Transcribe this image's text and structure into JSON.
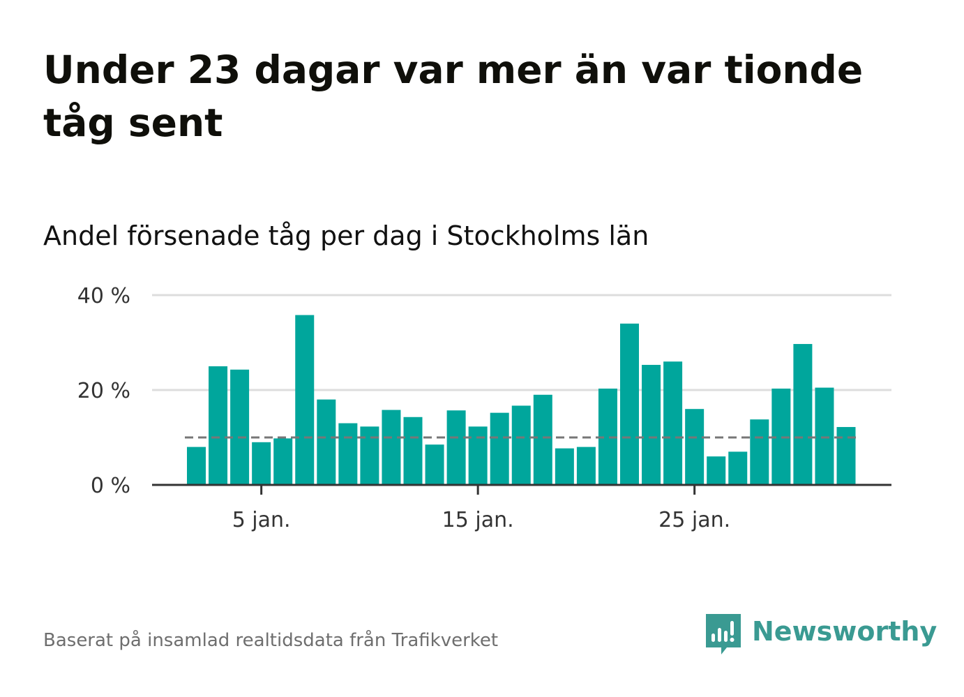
{
  "title": "Under 23 dagar var mer än var tionde tåg sent",
  "subtitle": "Andel försenade tåg per dag i Stockholms län",
  "footer": {
    "source": "Baserat på insamlad realtidsdata från Trafikverket",
    "brand": "Newsworthy",
    "brand_color": "#3a9a92"
  },
  "colors": {
    "bar": "#00a69c",
    "grid": "#dddddd",
    "baseline": "#333333",
    "reference_line": "#777777"
  },
  "chart_data": {
    "type": "bar",
    "title": "Andel försenade tåg per dag i Stockholms län",
    "xlabel": "",
    "ylabel": "",
    "x_unit": "day of January",
    "x": [
      2,
      3,
      4,
      5,
      6,
      7,
      8,
      9,
      10,
      11,
      12,
      13,
      14,
      15,
      16,
      17,
      18,
      19,
      20,
      21,
      22,
      23,
      24,
      25,
      26,
      27,
      28,
      29,
      30,
      31,
      32
    ],
    "values": [
      8,
      25,
      24.3,
      9,
      9.8,
      35.8,
      18,
      13,
      12.3,
      15.8,
      14.3,
      8.5,
      15.7,
      12.3,
      15.2,
      16.7,
      19,
      7.7,
      8,
      20.3,
      34,
      25.3,
      26,
      16,
      6,
      7,
      13.8,
      20.3,
      29.7,
      20.5,
      12.2
    ],
    "ylim": [
      0,
      40
    ],
    "yticks": [
      0,
      20,
      40
    ],
    "ytick_labels": [
      "0 %",
      "20 %",
      "40 %"
    ],
    "xticks": [
      5,
      15,
      25
    ],
    "xtick_labels": [
      "5 jan.",
      "15 jan.",
      "25 jan."
    ],
    "reference_line": {
      "value": 10,
      "style": "dashed"
    },
    "grid": true
  }
}
